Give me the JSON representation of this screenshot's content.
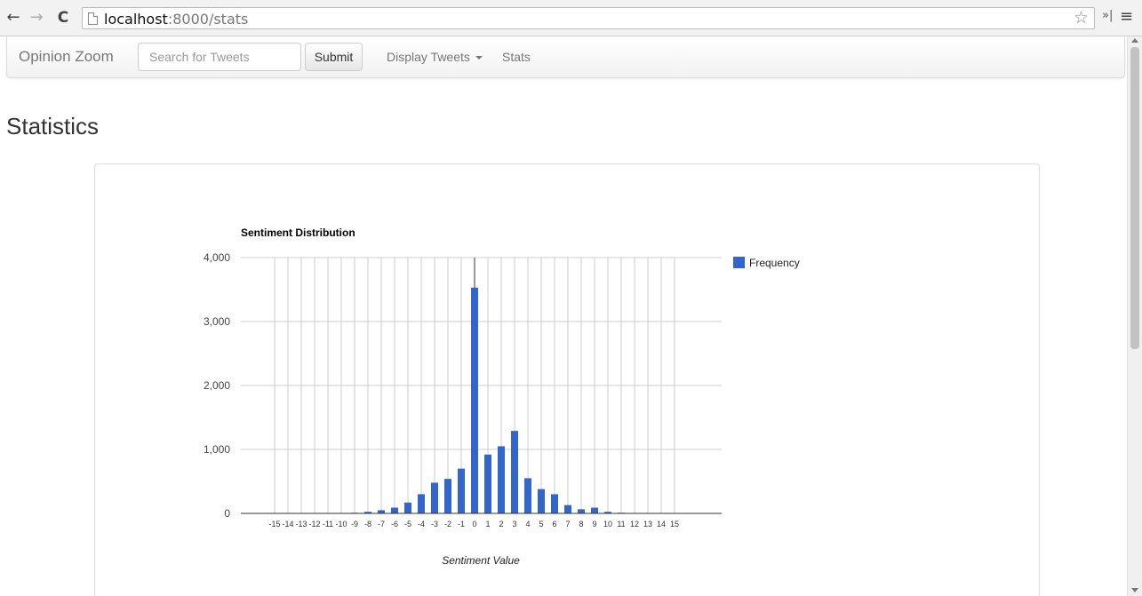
{
  "browser": {
    "url_host": "localhost",
    "url_path": ":8000/stats",
    "back_icon": "←",
    "forward_icon": "→",
    "reload_icon": "C",
    "star_icon": "☆",
    "extensions_icon": "»|",
    "menu_icon": "≡"
  },
  "navbar": {
    "brand": "Opinion Zoom",
    "search_placeholder": "Search for Tweets",
    "submit_label": "Submit",
    "display_tweets_label": "Display Tweets",
    "stats_label": "Stats"
  },
  "page": {
    "title": "Statistics"
  },
  "chart_data": {
    "type": "bar",
    "title": "Sentiment Distribution",
    "xlabel": "Sentiment Value",
    "ylabel": "",
    "ylim": [
      0,
      4000
    ],
    "yticks": [
      "0",
      "1,000",
      "2,000",
      "3,000",
      "4,000"
    ],
    "ytick_values": [
      0,
      1000,
      2000,
      3000,
      4000
    ],
    "legend_position": "right",
    "grid": true,
    "bar_color": "#3366cc",
    "categories": [
      "-15",
      "-14",
      "-13",
      "-12",
      "-11",
      "-10",
      "-9",
      "-8",
      "-7",
      "-6",
      "-5",
      "-4",
      "-3",
      "-2",
      "-1",
      "0",
      "1",
      "2",
      "3",
      "4",
      "5",
      "6",
      "7",
      "8",
      "9",
      "10",
      "11",
      "12",
      "13",
      "14",
      "15"
    ],
    "series": [
      {
        "name": "Frequency",
        "values": [
          0,
          0,
          0,
          0,
          0,
          0,
          10,
          25,
          50,
          90,
          170,
          300,
          480,
          540,
          700,
          3530,
          920,
          1050,
          1290,
          550,
          380,
          300,
          130,
          65,
          90,
          25,
          10,
          0,
          0,
          0,
          0
        ]
      }
    ]
  }
}
